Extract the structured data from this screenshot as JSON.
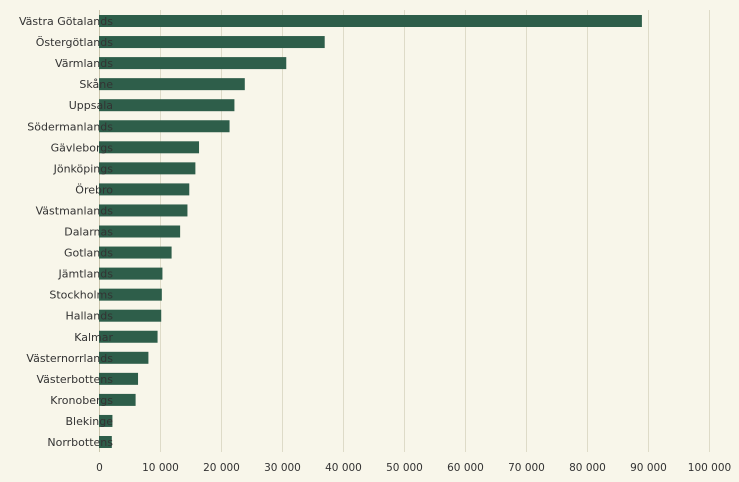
{
  "chart_data": {
    "type": "bar",
    "orientation": "horizontal",
    "categories": [
      "Västra Götalands",
      "Östergötlands",
      "Värmlands",
      "Skåne",
      "Uppsala",
      "Södermanlands",
      "Gävleborgs",
      "Jönköpings",
      "Örebro",
      "Västmanlands",
      "Dalarnas",
      "Gotlands",
      "Jämtlands",
      "Stockholms",
      "Hallands",
      "Kalmar",
      "Västernorrlands",
      "Västerbottens",
      "Kronobergs",
      "Blekinge",
      "Norrbottens"
    ],
    "values": [
      89000,
      37000,
      30700,
      23900,
      22200,
      21400,
      16400,
      15800,
      14800,
      14500,
      13300,
      11900,
      10400,
      10300,
      10200,
      9600,
      8100,
      6400,
      6000,
      2200,
      2100
    ],
    "xlim": [
      0,
      100000
    ],
    "x_ticks": [
      0,
      10000,
      20000,
      30000,
      40000,
      50000,
      60000,
      70000,
      80000,
      90000,
      100000
    ],
    "x_tick_labels": [
      "0",
      "10 000",
      "20 000",
      "30 000",
      "40 000",
      "50 000",
      "60 000",
      "70 000",
      "80 000",
      "90 000",
      "100 000"
    ],
    "grid": "vertical",
    "bar_color": "#2e5e4a",
    "background_color": "#f8f6ea"
  }
}
